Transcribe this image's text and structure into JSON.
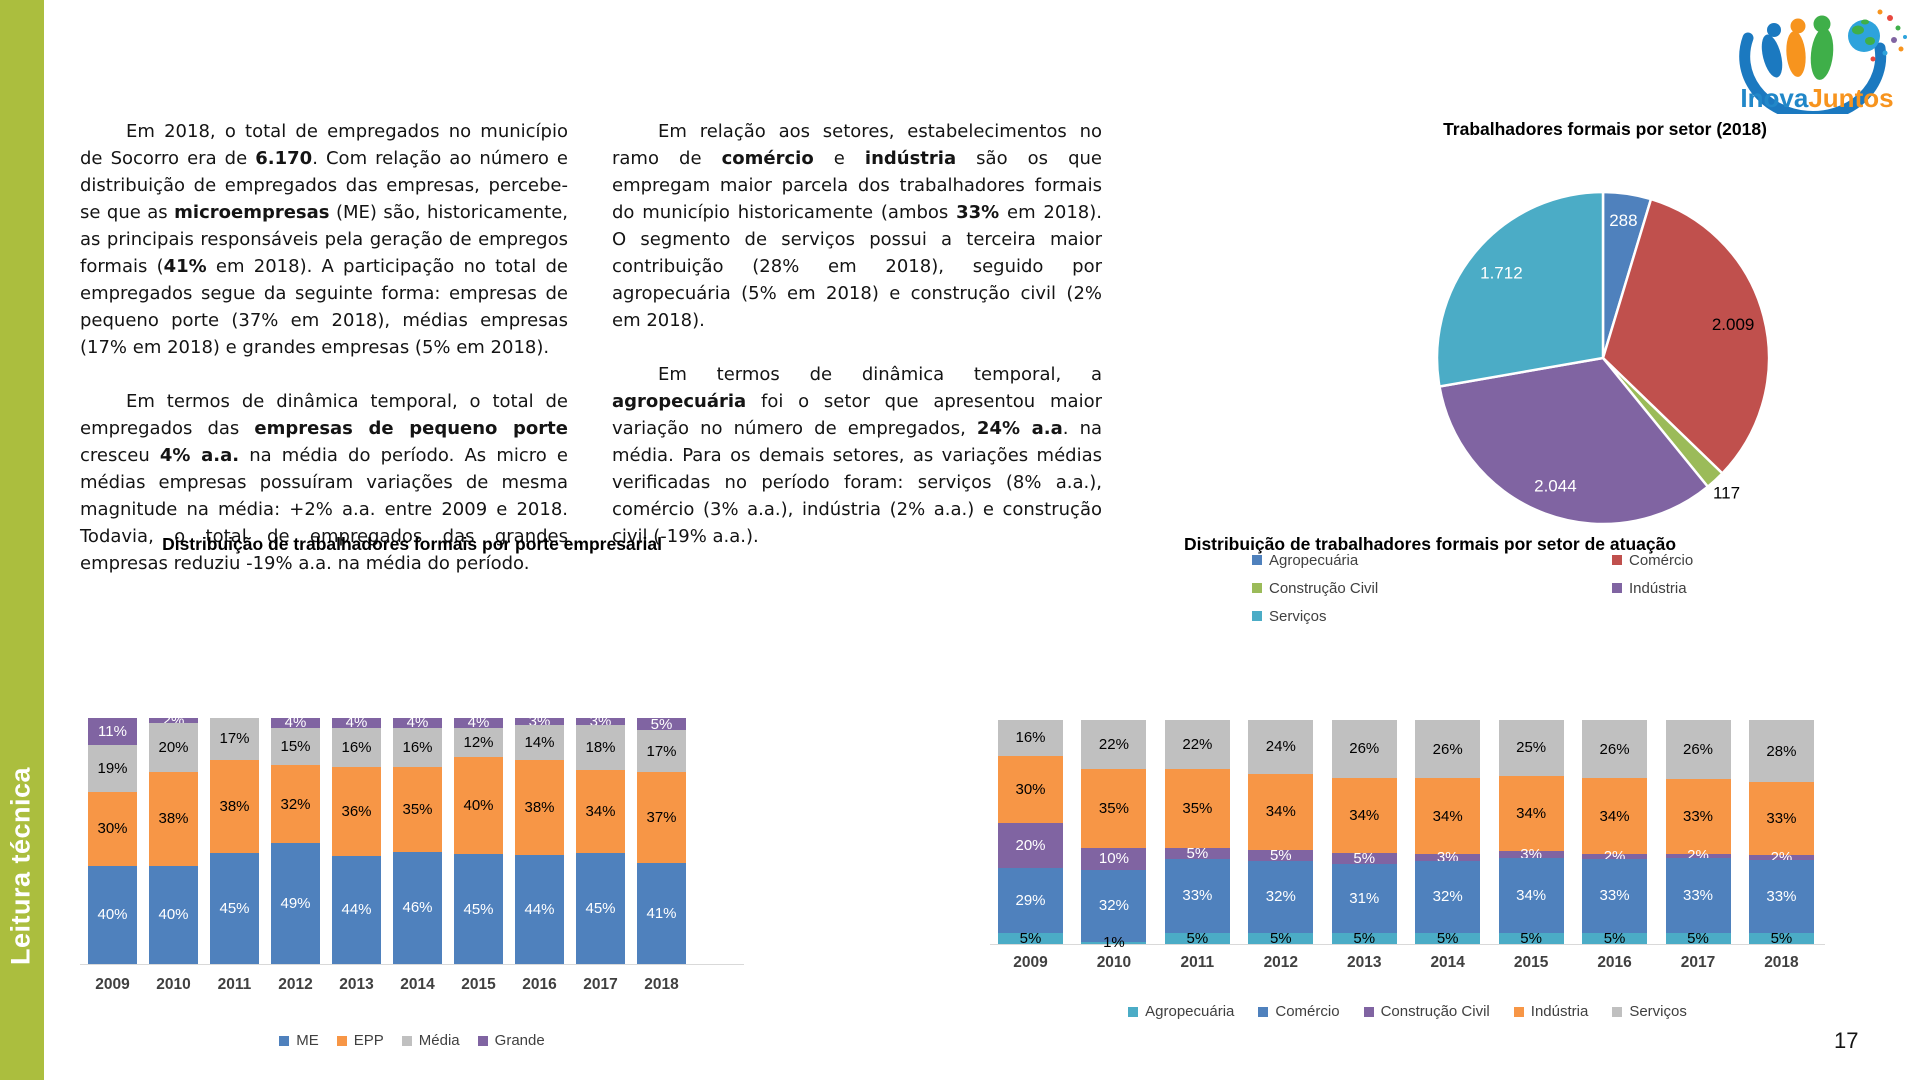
{
  "page": {
    "number": "17"
  },
  "sidebar": {
    "label": "Leitura técnica",
    "color": "#abbe3e"
  },
  "logo": {
    "part1": "Inova",
    "part2": "Juntos",
    "part1_color": "#2187c8",
    "part2_color": "#f7941e"
  },
  "col1_paragraphs": [
    [
      {
        "t": "Em 2018, o total de empregados no município de Socorro era de "
      },
      {
        "t": "6.170",
        "b": true
      },
      {
        "t": ". Com relação ao número e distribuição de empregados das empresas, percebe-se que as "
      },
      {
        "t": "microempresas",
        "b": true
      },
      {
        "t": " (ME) são, historicamente, as principais responsáveis pela geração de empregos formais ("
      },
      {
        "t": "41%",
        "b": true
      },
      {
        "t": " em 2018). A participação no total de empregados segue da seguinte forma: empresas de pequeno porte (37% em 2018), médias empresas (17% em 2018) e grandes empresas (5% em 2018)."
      }
    ],
    [
      {
        "t": "Em termos de dinâmica temporal, o total de empregados das "
      },
      {
        "t": "empresas de pequeno porte",
        "b": true
      },
      {
        "t": " cresceu "
      },
      {
        "t": "4% a.a.",
        "b": true
      },
      {
        "t": " na média do período. As micro e médias empresas possuíram variações de mesma magnitude na média: +2% a.a. entre 2009 e 2018. Todavia, o total de empregados das grandes empresas reduziu -19% a.a. na média do período."
      }
    ]
  ],
  "col2_paragraphs": [
    [
      {
        "t": "Em relação aos setores, estabelecimentos no ramo de "
      },
      {
        "t": "comércio",
        "b": true
      },
      {
        "t": " e "
      },
      {
        "t": "indústria",
        "b": true
      },
      {
        "t": " são os que empregam maior parcela dos trabalhadores formais do município historicamente (ambos "
      },
      {
        "t": "33%",
        "b": true
      },
      {
        "t": " em 2018). O segmento de serviços possui a terceira maior contribuição (28% em 2018), seguido por agropecuária (5% em 2018) e construção civil (2% em 2018)."
      }
    ],
    [
      {
        "t": "Em termos de dinâmica temporal, a "
      },
      {
        "t": "agropecuária",
        "b": true
      },
      {
        "t": " foi o setor que apresentou maior variação no número de empregados, "
      },
      {
        "t": "24% a.a",
        "b": true
      },
      {
        "t": ". na média. Para os demais setores, as variações médias verificadas no período foram: serviços (8% a.a.), comércio (3% a.a.), indústria (2% a.a.) e construção civil (-19% a.a.)."
      }
    ]
  ],
  "chart_data": [
    {
      "type": "pie",
      "title": "Trabalhadores formais por setor (2018)",
      "labels": [
        "Agropecuária",
        "Comércio",
        "Construção Civil",
        "Indústria",
        "Serviços"
      ],
      "values": [
        288,
        2009,
        117,
        2044,
        1712
      ],
      "value_labels": [
        "288",
        "2.009",
        "117",
        "2.044",
        "1.712"
      ],
      "colors": [
        "#4f81bd",
        "#c0504d",
        "#9bbb59",
        "#8064a2",
        "#4bacc6"
      ],
      "label_colors": [
        "#ffffff",
        "#000000",
        "#000000",
        "#ffffff",
        "#ffffff"
      ],
      "label_r": [
        0.84,
        0.81,
        1.1,
        0.82,
        0.8
      ],
      "start_angle_deg": 0,
      "legend_position": "bottom",
      "legend_columns": [
        [
          0,
          2,
          4
        ],
        [
          1,
          3
        ]
      ]
    },
    {
      "type": "bar",
      "stacked": true,
      "title": "Distribuição de trabalhadores formais por porte empresarial",
      "categories": [
        "2009",
        "2010",
        "2011",
        "2012",
        "2013",
        "2014",
        "2015",
        "2016",
        "2017",
        "2018"
      ],
      "ylim": [
        0,
        100
      ],
      "grid": false,
      "legend_position": "bottom",
      "series": [
        {
          "name": "ME",
          "color": "#4f81bd",
          "label_color": "#ffffff",
          "values": [
            40,
            40,
            45,
            49,
            44,
            46,
            45,
            44,
            45,
            41
          ]
        },
        {
          "name": "EPP",
          "color": "#f79646",
          "label_color": "#000000",
          "values": [
            30,
            38,
            38,
            32,
            36,
            35,
            40,
            38,
            34,
            37
          ]
        },
        {
          "name": "Média",
          "color": "#c0c0c0",
          "label_color": "#000000",
          "values": [
            19,
            20,
            17,
            15,
            16,
            16,
            12,
            14,
            18,
            17
          ]
        },
        {
          "name": "Grande",
          "color": "#8064a2",
          "label_color": "#ffffff",
          "values": [
            11,
            2,
            0,
            4,
            4,
            4,
            4,
            3,
            3,
            5
          ]
        }
      ]
    },
    {
      "type": "bar",
      "stacked": true,
      "title": "Distribuição de trabalhadores formais por setor de atuação",
      "categories": [
        "2009",
        "2010",
        "2011",
        "2012",
        "2013",
        "2014",
        "2015",
        "2016",
        "2017",
        "2018"
      ],
      "ylim": [
        0,
        100
      ],
      "grid": false,
      "legend_position": "bottom",
      "series": [
        {
          "name": "Agropecuária",
          "color": "#4bacc6",
          "label_color": "#000000",
          "values": [
            5,
            1,
            5,
            5,
            5,
            5,
            5,
            5,
            5,
            5
          ]
        },
        {
          "name": "Comércio",
          "color": "#4f81bd",
          "label_color": "#ffffff",
          "values": [
            29,
            32,
            33,
            32,
            31,
            32,
            34,
            33,
            33,
            33
          ]
        },
        {
          "name": "Construção Civil",
          "color": "#8064a2",
          "label_color": "#ffffff",
          "values": [
            20,
            10,
            5,
            5,
            5,
            3,
            3,
            2,
            2,
            2
          ]
        },
        {
          "name": "Indústria",
          "color": "#f79646",
          "label_color": "#000000",
          "values": [
            30,
            35,
            35,
            34,
            34,
            34,
            34,
            34,
            33,
            33
          ]
        },
        {
          "name": "Serviços",
          "color": "#c0c0c0",
          "label_color": "#000000",
          "values": [
            16,
            22,
            22,
            24,
            26,
            26,
            25,
            26,
            26,
            28
          ]
        }
      ]
    }
  ]
}
